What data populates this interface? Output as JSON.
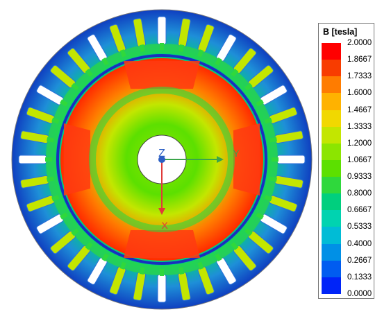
{
  "legend": {
    "title": "B [tesla]",
    "ticks": [
      "2.0000",
      "1.8667",
      "1.7333",
      "1.6000",
      "1.4667",
      "1.3333",
      "1.2000",
      "1.0667",
      "0.9333",
      "0.8000",
      "0.6667",
      "0.5333",
      "0.4000",
      "0.2667",
      "0.1333",
      "0.0000"
    ],
    "colors": [
      "#ff0000",
      "#f83c00",
      "#ff7c00",
      "#ffb200",
      "#f1d800",
      "#c3e600",
      "#8ce500",
      "#5ce000",
      "#2fd83c",
      "#00cf7e",
      "#00d3b0",
      "#00bcd6",
      "#0090e6",
      "#005cf0",
      "#0024f8"
    ]
  },
  "axes": {
    "z_label": "Z",
    "y_label": "Y",
    "x_label": "X"
  },
  "colors": {
    "stator_outer": "#1e8fd8",
    "air_gap": "#1a2fbf",
    "rotor_high": "#ff2a00",
    "rotor_mid": "#8ce500",
    "shaft": "#ffffff",
    "axis_x": "#e03a3a",
    "axis_y": "#3aa54a",
    "axis_z": "#2b5fc4"
  }
}
